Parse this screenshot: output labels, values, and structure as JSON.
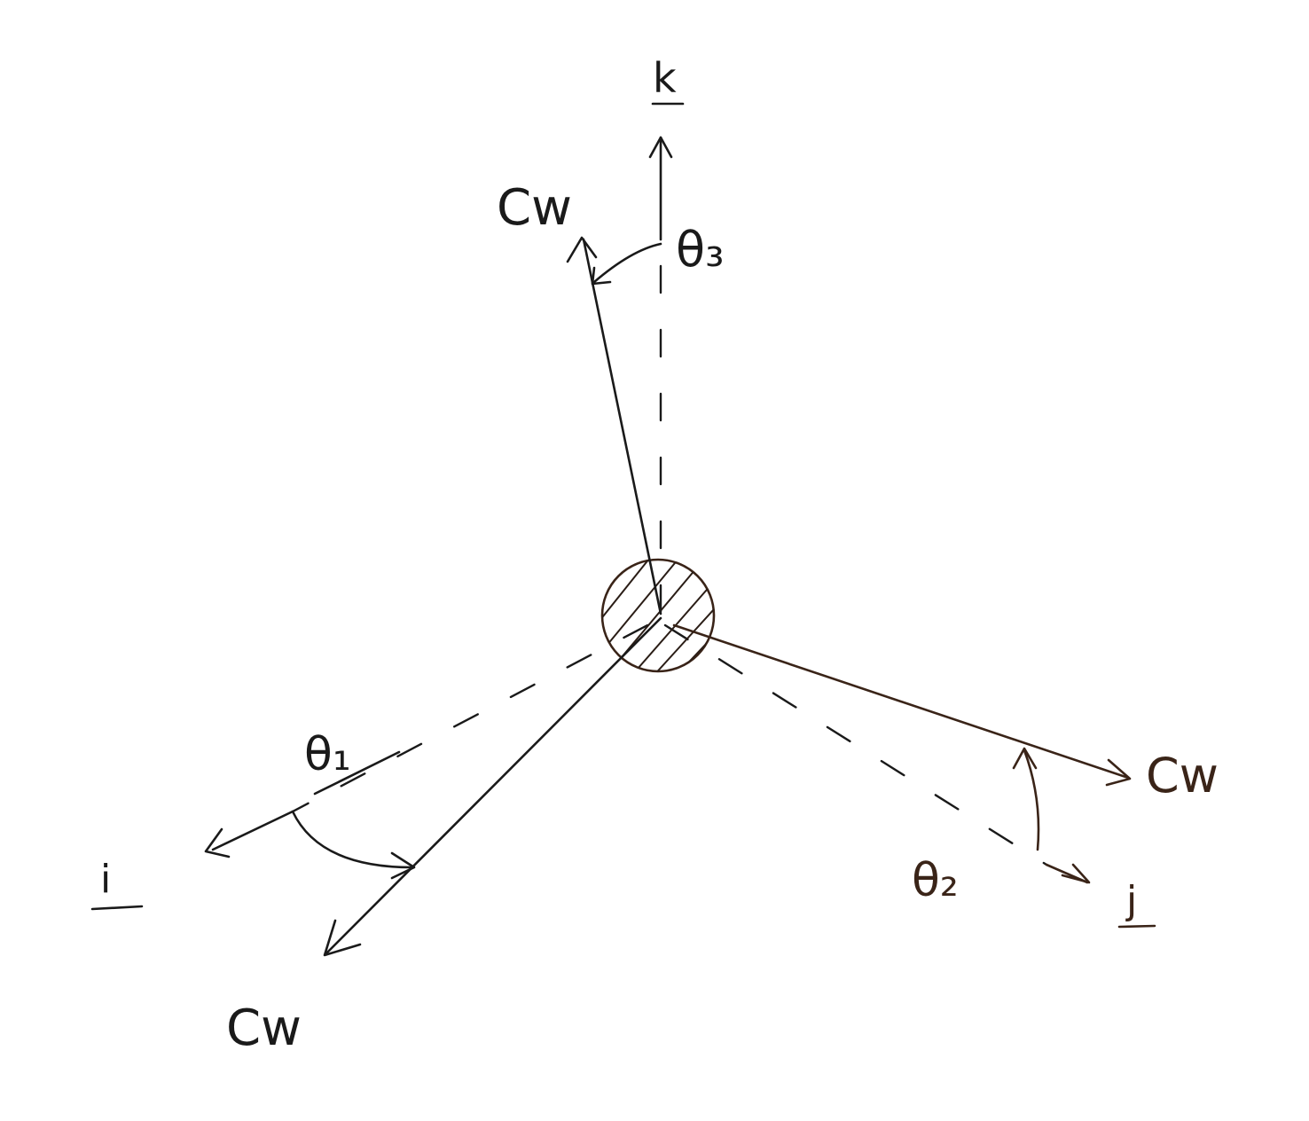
{
  "diagram": {
    "axes": {
      "k": "k",
      "i": "i",
      "j": "j"
    },
    "angles": {
      "theta1": "θ₁",
      "theta2": "θ₂",
      "theta3": "θ₃"
    },
    "vectors": {
      "upper": "Cw",
      "left": "Cw",
      "right": "Cw"
    },
    "colors": {
      "ink": "#1a1a1a",
      "brown_ink": "#3a2418",
      "paper": "#ffffff"
    }
  }
}
